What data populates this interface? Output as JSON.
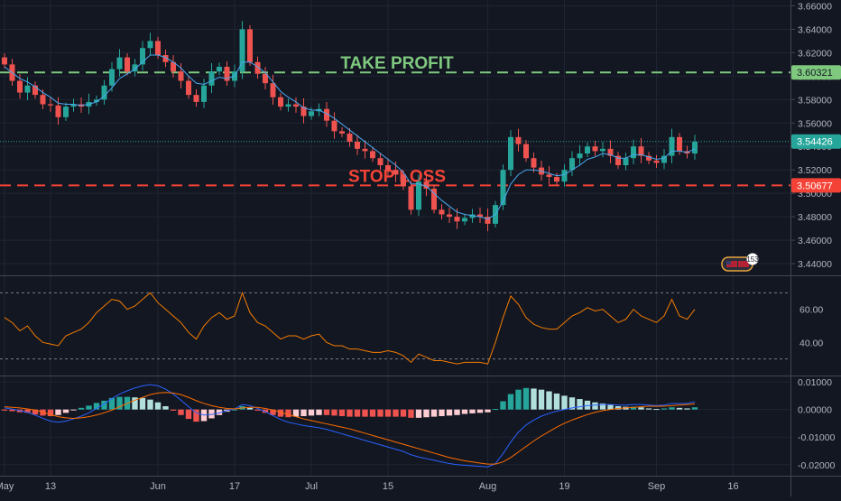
{
  "colors": {
    "background": "#131722",
    "grid": "#1f2433",
    "separator": "#434651",
    "up": "#26a69a",
    "down": "#ef5350",
    "ma": "#4aa8f0",
    "rsi": "#f57c00",
    "macd_line": "#2962ff",
    "signal_line": "#ff6d00",
    "hist_pos_strong": "#26a69a",
    "hist_pos_weak": "#b2dfdb",
    "hist_neg_strong": "#ef5350",
    "hist_neg_weak": "#ffcdd2",
    "take_profit": "#7fc97f",
    "stop_loss": "#f44336",
    "axis_text": "#b2b5be"
  },
  "annotations": {
    "take_profit": {
      "label": "TAKE PROFIT",
      "price": 3.60321,
      "price_label": "3.60321"
    },
    "stop_loss": {
      "label": "STOP LOSS",
      "price": 3.50677,
      "price_label": "3.50677"
    },
    "last_price": {
      "price": 3.54426,
      "price_label": "3.54426"
    },
    "events_badge": "153"
  },
  "x_axis_labels": [
    {
      "label": "May",
      "index": 0
    },
    {
      "label": "13",
      "index": 6
    },
    {
      "label": "Jun",
      "index": 20
    },
    {
      "label": "17",
      "index": 30
    },
    {
      "label": "Jul",
      "index": 40
    },
    {
      "label": "15",
      "index": 50
    },
    {
      "label": "Aug",
      "index": 63
    },
    {
      "label": "19",
      "index": 73
    },
    {
      "label": "Sep",
      "index": 85
    },
    {
      "label": "16",
      "index": 95
    }
  ],
  "chart_data": [
    {
      "type": "candlestick",
      "panel": "price",
      "ylim": [
        3.43,
        3.665
      ],
      "yticks": [
        "3.66000",
        "3.64000",
        "3.62000",
        "3.60000",
        "3.58000",
        "3.56000",
        "3.54000",
        "3.52000",
        "3.50000",
        "3.48000",
        "3.46000",
        "3.44000"
      ],
      "ytick_values": [
        3.66,
        3.64,
        3.62,
        3.6,
        3.58,
        3.56,
        3.54,
        3.52,
        3.5,
        3.48,
        3.46,
        3.44
      ],
      "close": [
        3.61,
        3.596,
        3.586,
        3.592,
        3.584,
        3.576,
        3.575,
        3.565,
        3.574,
        3.576,
        3.574,
        3.578,
        3.58,
        3.592,
        3.606,
        3.616,
        3.604,
        3.61,
        3.624,
        3.63,
        3.618,
        3.612,
        3.604,
        3.596,
        3.584,
        3.578,
        3.592,
        3.604,
        3.608,
        3.596,
        3.604,
        3.64,
        3.612,
        3.602,
        3.594,
        3.582,
        3.574,
        3.576,
        3.574,
        3.566,
        3.57,
        3.572,
        3.562,
        3.553,
        3.551,
        3.544,
        3.538,
        3.536,
        3.53,
        3.524,
        3.52,
        3.516,
        3.506,
        3.486,
        3.51,
        3.504,
        3.486,
        3.482,
        3.48,
        3.476,
        3.479,
        3.482,
        3.48,
        3.474,
        3.49,
        3.52,
        3.548,
        3.542,
        3.53,
        3.522,
        3.516,
        3.514,
        3.51,
        3.52,
        3.53,
        3.534,
        3.54,
        3.536,
        3.538,
        3.532,
        3.524,
        3.53,
        3.54,
        3.532,
        3.528,
        3.526,
        3.532,
        3.548,
        3.536,
        3.534,
        3.544
      ],
      "ma": [
        3.608,
        3.603,
        3.598,
        3.595,
        3.591,
        3.586,
        3.582,
        3.577,
        3.576,
        3.576,
        3.575,
        3.576,
        3.578,
        3.583,
        3.59,
        3.598,
        3.602,
        3.606,
        3.612,
        3.618,
        3.618,
        3.616,
        3.612,
        3.607,
        3.6,
        3.594,
        3.593,
        3.596,
        3.599,
        3.598,
        3.6,
        3.612,
        3.612,
        3.608,
        3.603,
        3.595,
        3.587,
        3.582,
        3.578,
        3.573,
        3.571,
        3.571,
        3.568,
        3.564,
        3.559,
        3.554,
        3.549,
        3.544,
        3.539,
        3.534,
        3.529,
        3.524,
        3.518,
        3.508,
        3.508,
        3.506,
        3.5,
        3.494,
        3.489,
        3.484,
        3.482,
        3.481,
        3.48,
        3.478,
        3.482,
        3.493,
        3.508,
        3.516,
        3.52,
        3.52,
        3.519,
        3.517,
        3.515,
        3.516,
        3.52,
        3.524,
        3.529,
        3.531,
        3.534,
        3.533,
        3.53,
        3.53,
        3.533,
        3.533,
        3.531,
        3.529,
        3.53,
        3.536,
        3.536,
        3.535,
        3.538
      ]
    },
    {
      "type": "line",
      "panel": "rsi",
      "ylim": [
        20,
        80
      ],
      "yticks": [
        "60.00",
        "40.00"
      ],
      "ytick_values": [
        60,
        40
      ],
      "bands": [
        70,
        30
      ],
      "values": [
        55,
        52,
        47,
        50,
        44,
        40,
        39,
        38,
        44,
        46,
        48,
        52,
        58,
        62,
        66,
        65,
        60,
        62,
        66,
        70,
        64,
        60,
        56,
        52,
        46,
        42,
        50,
        55,
        58,
        54,
        56,
        70,
        58,
        52,
        50,
        46,
        42,
        44,
        44,
        42,
        44,
        45,
        40,
        38,
        38,
        36,
        36,
        35,
        34,
        34,
        35,
        34,
        32,
        28,
        33,
        31,
        29,
        29,
        28,
        27,
        28,
        28,
        28,
        27,
        40,
        55,
        68,
        63,
        55,
        51,
        49,
        48,
        48,
        52,
        56,
        58,
        61,
        59,
        60,
        56,
        52,
        54,
        60,
        56,
        54,
        52,
        56,
        66,
        56,
        54,
        60
      ]
    },
    {
      "type": "macd",
      "panel": "macd",
      "ylim": [
        -0.024,
        0.012
      ],
      "yticks": [
        "0.01000",
        "0.00000",
        "-0.01000",
        "-0.02000"
      ],
      "ytick_values": [
        0.01,
        0,
        -0.01,
        -0.02
      ],
      "macd": [
        0.0006,
        0.0002,
        -0.0004,
        -0.001,
        -0.002,
        -0.0032,
        -0.0042,
        -0.0046,
        -0.0042,
        -0.0034,
        -0.0024,
        -0.0012,
        0.0004,
        0.002,
        0.004,
        0.0056,
        0.0068,
        0.0078,
        0.0086,
        0.009,
        0.0086,
        0.0074,
        0.0056,
        0.0034,
        0.001,
        -0.0012,
        -0.002,
        -0.0018,
        -0.0012,
        -0.0004,
        0.0002,
        0.0018,
        0.0014,
        0.0004,
        -0.0008,
        -0.0022,
        -0.0036,
        -0.0046,
        -0.0052,
        -0.0058,
        -0.0062,
        -0.0066,
        -0.0072,
        -0.008,
        -0.0088,
        -0.0096,
        -0.0104,
        -0.0112,
        -0.012,
        -0.0128,
        -0.0136,
        -0.0144,
        -0.0152,
        -0.0164,
        -0.0172,
        -0.0178,
        -0.0184,
        -0.019,
        -0.0196,
        -0.02,
        -0.0202,
        -0.0204,
        -0.0206,
        -0.0208,
        -0.0196,
        -0.016,
        -0.0118,
        -0.0082,
        -0.0056,
        -0.0038,
        -0.0024,
        -0.0014,
        -0.0006,
        0.0,
        0.0006,
        0.001,
        0.0014,
        0.0016,
        0.0018,
        0.0018,
        0.0016,
        0.0016,
        0.0018,
        0.0018,
        0.0016,
        0.0014,
        0.0016,
        0.0022,
        0.0022,
        0.0022,
        0.0028
      ],
      "signal": [
        0.001,
        0.0008,
        0.0006,
        0.0002,
        -0.0002,
        -0.001,
        -0.0018,
        -0.0026,
        -0.003,
        -0.0032,
        -0.003,
        -0.0026,
        -0.002,
        -0.0012,
        -0.0002,
        0.001,
        0.0022,
        0.0034,
        0.0044,
        0.0054,
        0.006,
        0.0062,
        0.006,
        0.0054,
        0.0044,
        0.0032,
        0.0022,
        0.0014,
        0.0008,
        0.0004,
        0.0002,
        0.0006,
        0.0008,
        0.0008,
        0.0004,
        -0.0002,
        -0.001,
        -0.0018,
        -0.0026,
        -0.0034,
        -0.004,
        -0.0046,
        -0.0052,
        -0.0058,
        -0.0064,
        -0.007,
        -0.0078,
        -0.0086,
        -0.0094,
        -0.0102,
        -0.011,
        -0.0118,
        -0.0126,
        -0.0134,
        -0.0142,
        -0.015,
        -0.0158,
        -0.0166,
        -0.0174,
        -0.018,
        -0.0186,
        -0.019,
        -0.0194,
        -0.0198,
        -0.0198,
        -0.019,
        -0.0174,
        -0.0154,
        -0.0134,
        -0.0114,
        -0.0096,
        -0.008,
        -0.0064,
        -0.005,
        -0.0038,
        -0.0028,
        -0.0018,
        -0.001,
        -0.0004,
        0.0,
        0.0004,
        0.0006,
        0.0008,
        0.001,
        0.0012,
        0.0012,
        0.0012,
        0.0014,
        0.0016,
        0.0018,
        0.002
      ]
    }
  ]
}
